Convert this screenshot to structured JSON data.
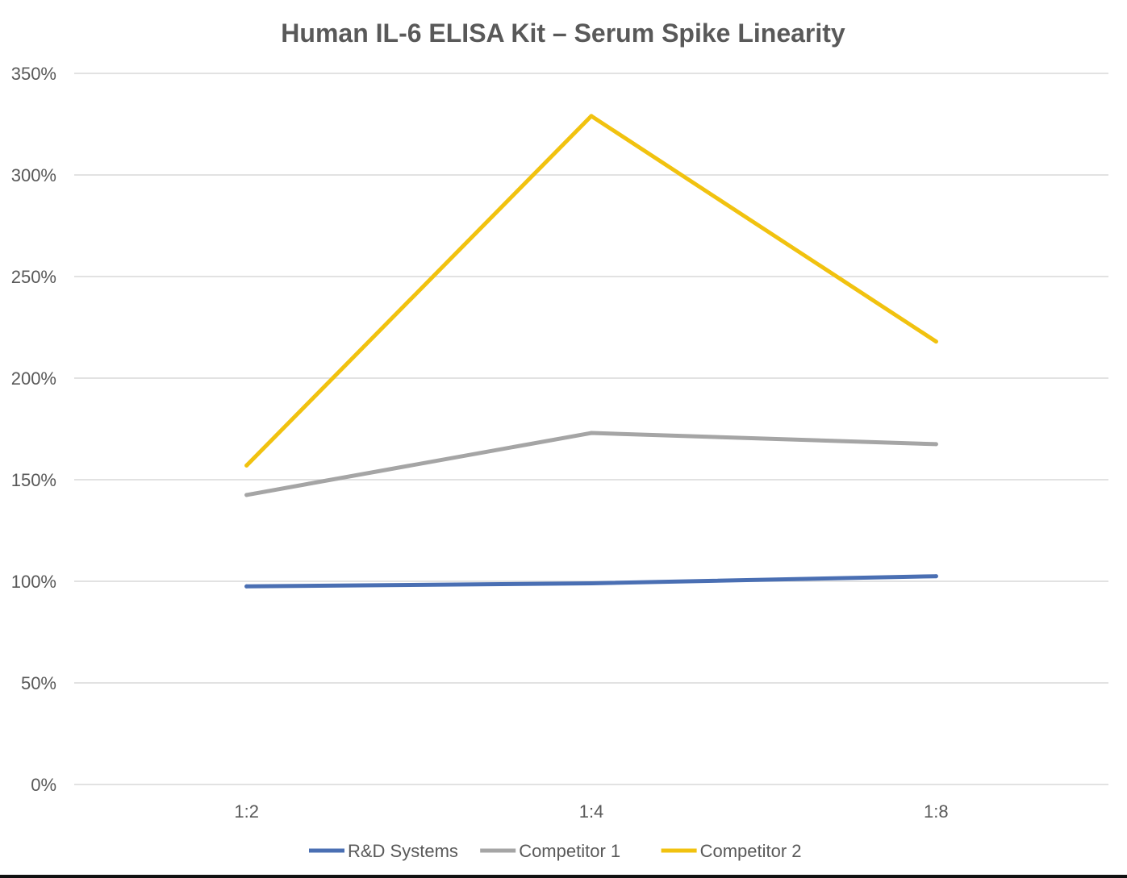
{
  "chart_data": {
    "type": "line",
    "title": "Human IL-6 ELISA Kit – Serum Spike Linearity",
    "xlabel": "",
    "ylabel": "",
    "categories": [
      "1:2",
      "1:4",
      "1:8"
    ],
    "ylim": [
      0,
      350
    ],
    "yticks": [
      0,
      50,
      100,
      150,
      200,
      250,
      300,
      350
    ],
    "ytick_labels": [
      "0%",
      "50%",
      "100%",
      "150%",
      "200%",
      "250%",
      "300%",
      "350%"
    ],
    "grid": true,
    "legend_position": "bottom",
    "series": [
      {
        "name": "R&D Systems",
        "color": "#4a6fb3",
        "values": [
          97.5,
          99,
          102.5
        ]
      },
      {
        "name": "Competitor 1",
        "color": "#a5a5a5",
        "values": [
          142.5,
          173,
          167.5
        ]
      },
      {
        "name": "Competitor 2",
        "color": "#f1c20f",
        "values": [
          157,
          329,
          218
        ]
      }
    ]
  },
  "colors": {
    "title": "#595959",
    "axis_text": "#595959",
    "gridline": "#d9d9d9"
  }
}
